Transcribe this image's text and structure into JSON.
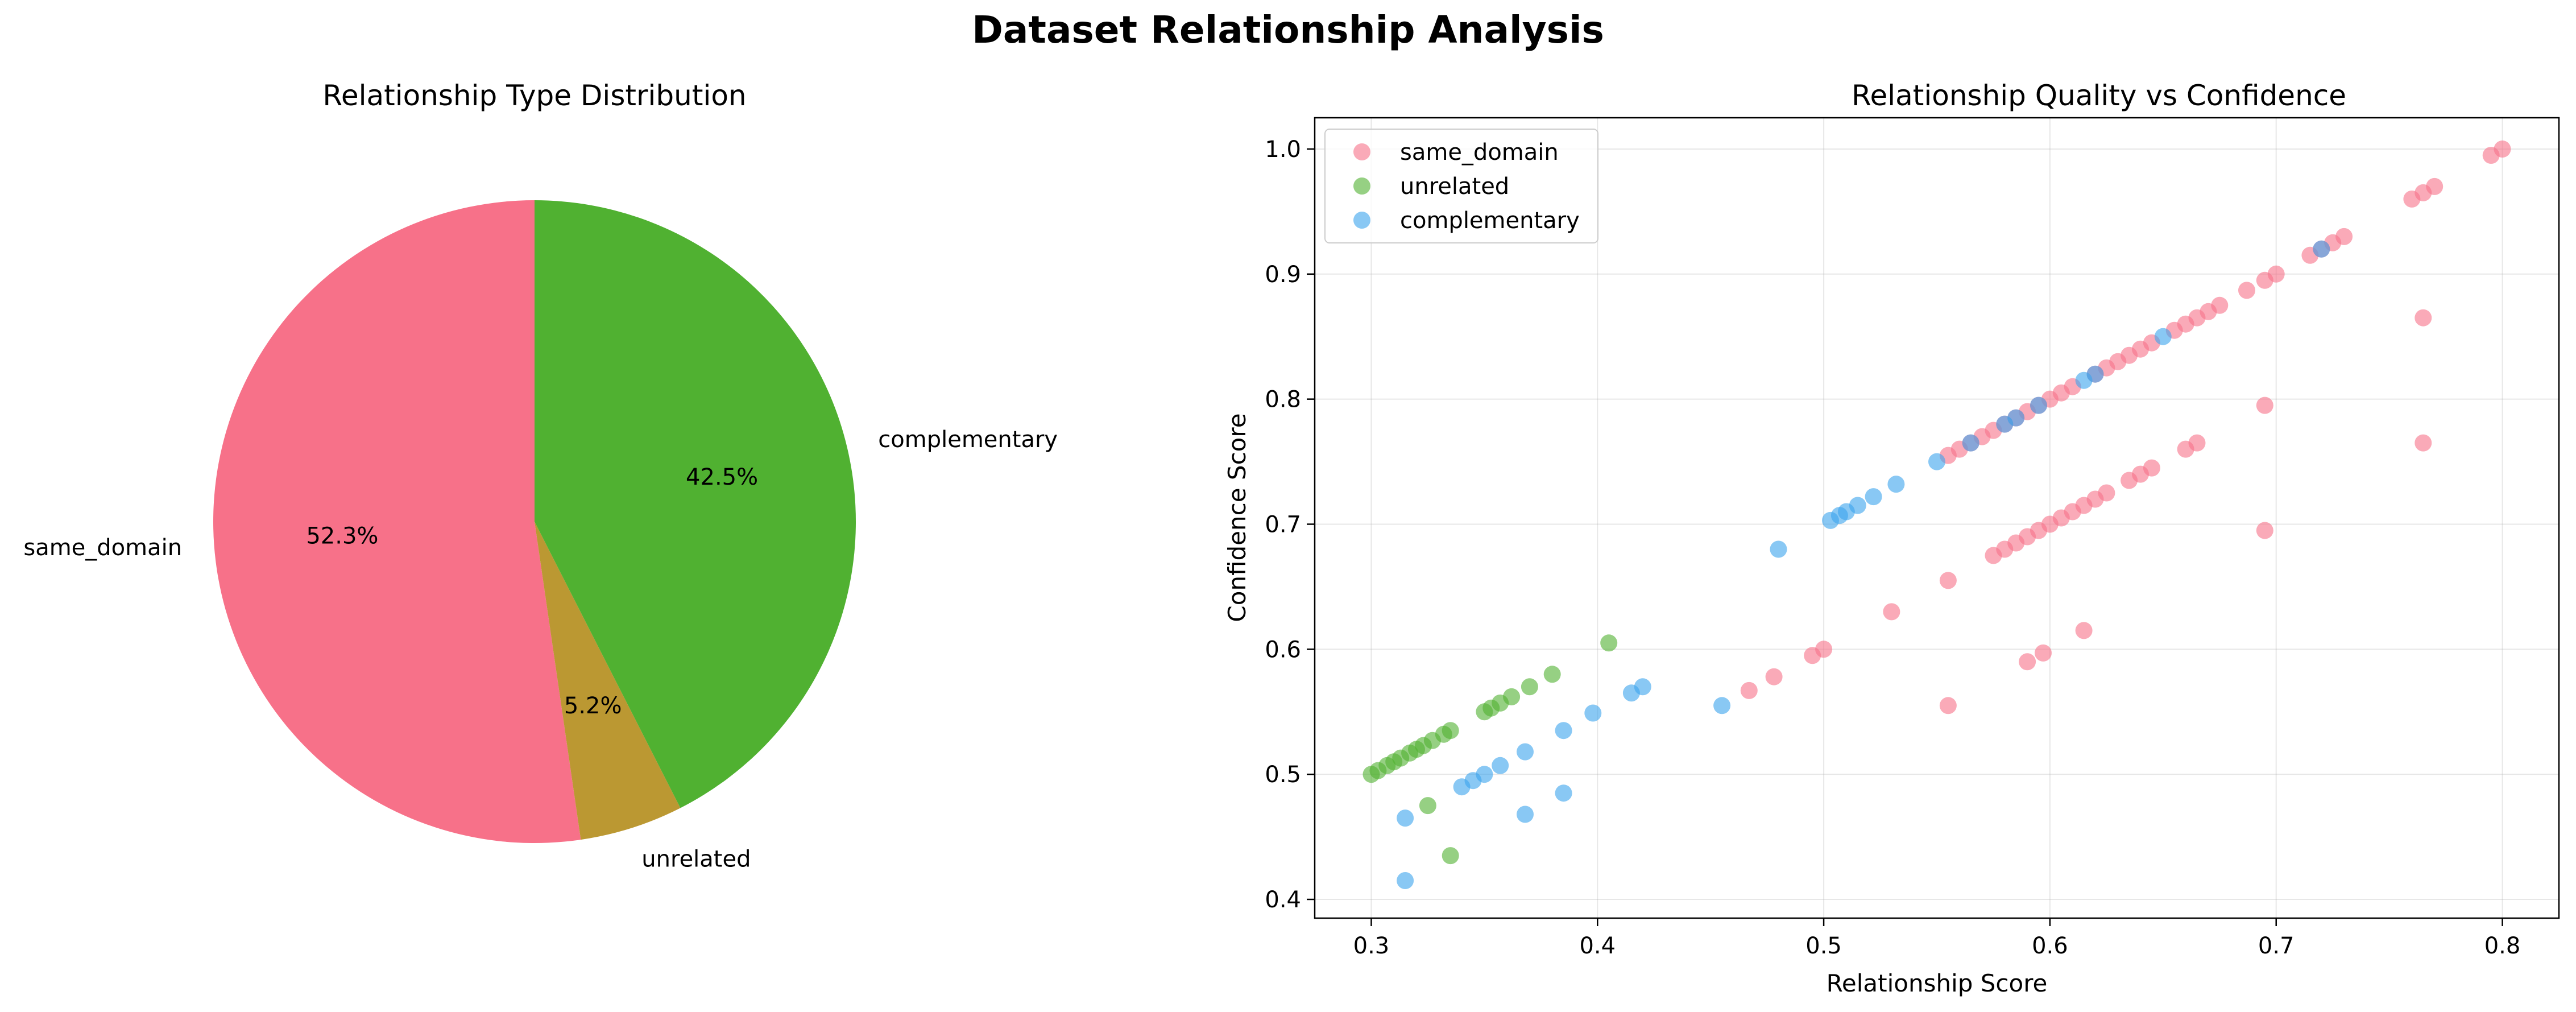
{
  "figure": {
    "title": "Dataset Relationship Analysis"
  },
  "colors": {
    "same_domain": "#f77189",
    "unrelated": "#50b131",
    "complementary": "#3ba3ec",
    "unrelated_pie": "#bb9832"
  },
  "chart_data": [
    {
      "type": "pie",
      "title": "Relationship Type Distribution",
      "start_angle_deg": 90,
      "direction": "counterclockwise",
      "slices": [
        {
          "label": "same_domain",
          "value": 52.3,
          "pct_label": "52.3%",
          "color": "#f77189"
        },
        {
          "label": "unrelated",
          "value": 5.2,
          "pct_label": "5.2%",
          "color": "#bb9832"
        },
        {
          "label": "complementary",
          "value": 42.5,
          "pct_label": "42.5%",
          "color": "#50b131"
        }
      ]
    },
    {
      "type": "scatter",
      "title": "Relationship Quality vs Confidence",
      "xlabel": "Relationship Score",
      "ylabel": "Confidence Score",
      "xlim": [
        0.275,
        0.825
      ],
      "ylim": [
        0.385,
        1.025
      ],
      "xticks": [
        0.3,
        0.4,
        0.5,
        0.6,
        0.7,
        0.8
      ],
      "xtick_labels": [
        "0.3",
        "0.4",
        "0.5",
        "0.6",
        "0.7",
        "0.8"
      ],
      "yticks": [
        0.4,
        0.5,
        0.6,
        0.7,
        0.8,
        0.9,
        1.0
      ],
      "ytick_labels": [
        "0.4",
        "0.5",
        "0.6",
        "0.7",
        "0.8",
        "0.9",
        "1.0"
      ],
      "grid": true,
      "legend_position": "top-left",
      "point_alpha": 0.6,
      "series": [
        {
          "name": "same_domain",
          "color": "#f77189",
          "points": [
            [
              0.555,
              0.755
            ],
            [
              0.56,
              0.76
            ],
            [
              0.565,
              0.765
            ],
            [
              0.57,
              0.77
            ],
            [
              0.575,
              0.775
            ],
            [
              0.58,
              0.78
            ],
            [
              0.585,
              0.785
            ],
            [
              0.59,
              0.79
            ],
            [
              0.595,
              0.795
            ],
            [
              0.6,
              0.8
            ],
            [
              0.605,
              0.805
            ],
            [
              0.61,
              0.81
            ],
            [
              0.62,
              0.82
            ],
            [
              0.625,
              0.825
            ],
            [
              0.63,
              0.83
            ],
            [
              0.635,
              0.835
            ],
            [
              0.64,
              0.84
            ],
            [
              0.645,
              0.845
            ],
            [
              0.655,
              0.855
            ],
            [
              0.66,
              0.86
            ],
            [
              0.665,
              0.865
            ],
            [
              0.67,
              0.87
            ],
            [
              0.675,
              0.875
            ],
            [
              0.687,
              0.887
            ],
            [
              0.695,
              0.895
            ],
            [
              0.7,
              0.9
            ],
            [
              0.715,
              0.915
            ],
            [
              0.72,
              0.92
            ],
            [
              0.725,
              0.925
            ],
            [
              0.73,
              0.93
            ],
            [
              0.76,
              0.96
            ],
            [
              0.765,
              0.965
            ],
            [
              0.77,
              0.97
            ],
            [
              0.795,
              0.995
            ],
            [
              0.8,
              1.0
            ],
            [
              0.575,
              0.675
            ],
            [
              0.58,
              0.68
            ],
            [
              0.585,
              0.685
            ],
            [
              0.59,
              0.69
            ],
            [
              0.595,
              0.695
            ],
            [
              0.6,
              0.7
            ],
            [
              0.605,
              0.705
            ],
            [
              0.61,
              0.71
            ],
            [
              0.615,
              0.715
            ],
            [
              0.62,
              0.72
            ],
            [
              0.625,
              0.725
            ],
            [
              0.635,
              0.735
            ],
            [
              0.64,
              0.74
            ],
            [
              0.645,
              0.745
            ],
            [
              0.66,
              0.76
            ],
            [
              0.665,
              0.765
            ],
            [
              0.695,
              0.795
            ],
            [
              0.765,
              0.865
            ],
            [
              0.695,
              0.695
            ],
            [
              0.765,
              0.765
            ],
            [
              0.555,
              0.655
            ],
            [
              0.53,
              0.63
            ],
            [
              0.615,
              0.615
            ],
            [
              0.478,
              0.578
            ],
            [
              0.467,
              0.567
            ],
            [
              0.495,
              0.595
            ],
            [
              0.5,
              0.6
            ],
            [
              0.59,
              0.59
            ],
            [
              0.597,
              0.597
            ],
            [
              0.555,
              0.555
            ]
          ]
        },
        {
          "name": "unrelated",
          "color": "#50b131",
          "points": [
            [
              0.3,
              0.5
            ],
            [
              0.303,
              0.503
            ],
            [
              0.307,
              0.507
            ],
            [
              0.31,
              0.51
            ],
            [
              0.313,
              0.513
            ],
            [
              0.317,
              0.517
            ],
            [
              0.32,
              0.52
            ],
            [
              0.323,
              0.523
            ],
            [
              0.327,
              0.527
            ],
            [
              0.332,
              0.532
            ],
            [
              0.335,
              0.535
            ],
            [
              0.35,
              0.55
            ],
            [
              0.353,
              0.553
            ],
            [
              0.357,
              0.557
            ],
            [
              0.362,
              0.562
            ],
            [
              0.37,
              0.57
            ],
            [
              0.38,
              0.58
            ],
            [
              0.405,
              0.605
            ],
            [
              0.325,
              0.475
            ],
            [
              0.335,
              0.435
            ]
          ]
        },
        {
          "name": "complementary",
          "color": "#3ba3ec",
          "points": [
            [
              0.55,
              0.75
            ],
            [
              0.565,
              0.765
            ],
            [
              0.58,
              0.78
            ],
            [
              0.585,
              0.785
            ],
            [
              0.595,
              0.795
            ],
            [
              0.615,
              0.815
            ],
            [
              0.62,
              0.82
            ],
            [
              0.65,
              0.85
            ],
            [
              0.72,
              0.92
            ],
            [
              0.503,
              0.703
            ],
            [
              0.507,
              0.707
            ],
            [
              0.51,
              0.71
            ],
            [
              0.515,
              0.715
            ],
            [
              0.522,
              0.722
            ],
            [
              0.532,
              0.732
            ],
            [
              0.48,
              0.68
            ],
            [
              0.42,
              0.57
            ],
            [
              0.415,
              0.565
            ],
            [
              0.398,
              0.549
            ],
            [
              0.385,
              0.535
            ],
            [
              0.368,
              0.518
            ],
            [
              0.357,
              0.507
            ],
            [
              0.35,
              0.5
            ],
            [
              0.345,
              0.495
            ],
            [
              0.34,
              0.49
            ],
            [
              0.315,
              0.465
            ],
            [
              0.315,
              0.415
            ],
            [
              0.368,
              0.468
            ],
            [
              0.385,
              0.485
            ],
            [
              0.455,
              0.555
            ]
          ]
        }
      ]
    }
  ]
}
